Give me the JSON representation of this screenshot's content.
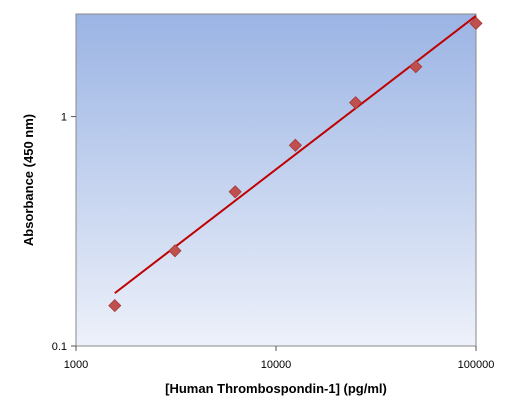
{
  "chart_data": {
    "type": "scatter",
    "title": "",
    "xlabel": "[Human Thrombospondin-1] (pg/ml)",
    "ylabel": "Absorbance (450 nm)",
    "x_scale": "log",
    "y_scale": "log",
    "xlim": [
      1000,
      100000
    ],
    "ylim": [
      0.1,
      2.8
    ],
    "x_ticks": [
      1000,
      10000,
      100000
    ],
    "x_tick_labels": [
      "1000",
      "10000",
      "100000"
    ],
    "y_ticks": [
      0.1,
      1
    ],
    "y_tick_labels": [
      "0.1",
      "1"
    ],
    "grid": false,
    "legend": "none",
    "series": [
      {
        "x": [
          1563,
          3125,
          6250,
          12500,
          25000,
          50000,
          100000
        ],
        "y": [
          0.15,
          0.26,
          0.47,
          0.75,
          1.15,
          1.65,
          2.55
        ],
        "marker": "diamond",
        "color": "#c0504d"
      }
    ],
    "fit_line": {
      "x": [
        1563,
        100000
      ],
      "y": [
        0.17,
        2.75
      ],
      "color": "#c00000"
    },
    "plot_background": {
      "gradient_top": "#9bb4e4",
      "gradient_bottom": "#edf1fa"
    }
  }
}
